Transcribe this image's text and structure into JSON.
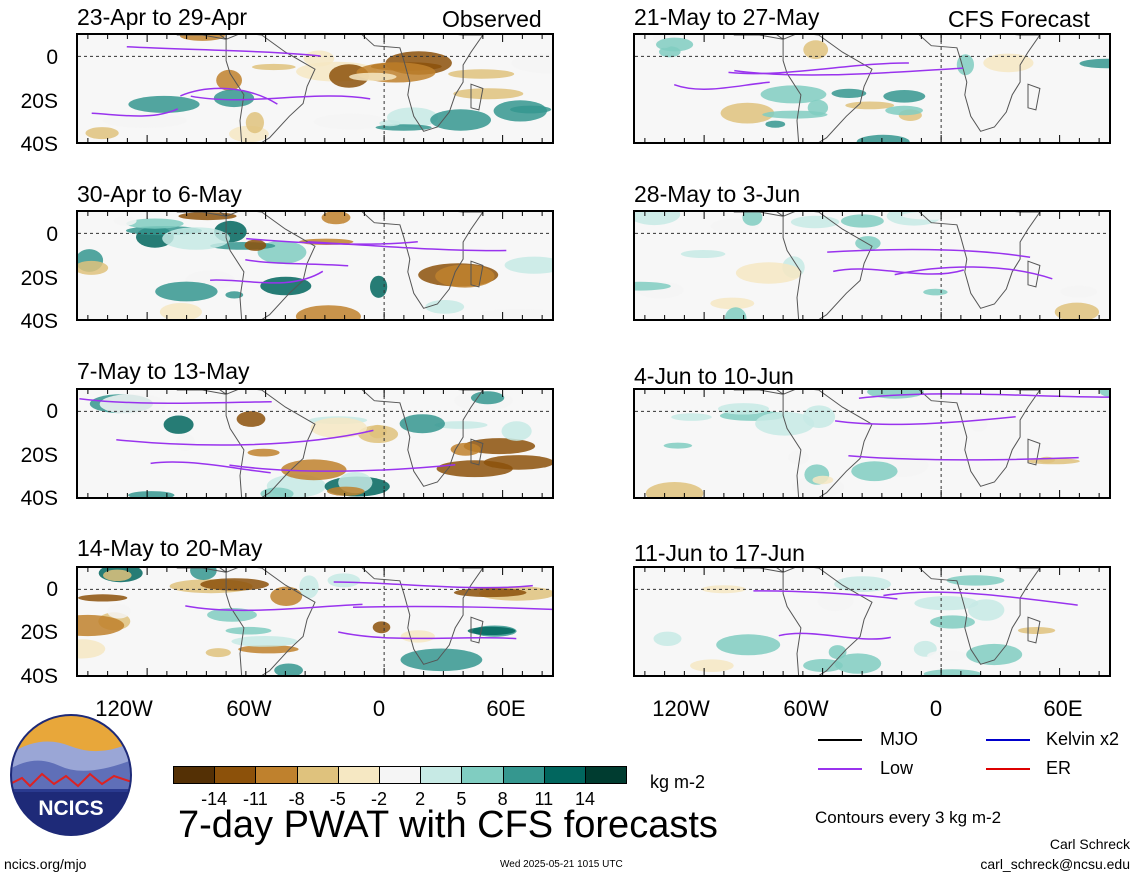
{
  "panels": [
    {
      "title": "23-Apr to 29-Apr",
      "label": "Observed"
    },
    {
      "title": "21-May to 27-May",
      "label": "CFS Forecast"
    },
    {
      "title": "30-Apr to 6-May"
    },
    {
      "title": "28-May to 3-Jun"
    },
    {
      "title": "7-May to 13-May"
    },
    {
      "title": "4-Jun to 10-Jun"
    },
    {
      "title": "14-May to 20-May"
    },
    {
      "title": "11-Jun to 17-Jun"
    }
  ],
  "y_ticks": [
    "0",
    "20S",
    "40S"
  ],
  "x_ticks": [
    "120W",
    "60W",
    "0",
    "60E"
  ],
  "colorbar": {
    "colors": [
      "#543005",
      "#8c510a",
      "#bf812d",
      "#dfc27d",
      "#f6e8c3",
      "#f5f5f5",
      "#c7eae5",
      "#80cdc1",
      "#35978f",
      "#01665e",
      "#003c30"
    ],
    "labels": [
      "-14",
      "-11",
      "-8",
      "-5",
      "-2",
      "2",
      "5",
      "8",
      "11",
      "14"
    ],
    "unit": "kg m-2"
  },
  "legend": {
    "items": [
      {
        "label": "MJO",
        "color": "#000000"
      },
      {
        "label": "Kelvin x2",
        "color": "#0000cc"
      },
      {
        "label": "Low",
        "color": "#9933ee"
      },
      {
        "label": "ER",
        "color": "#dd0000"
      }
    ],
    "contour_note": "Contours every 3 kg m-2"
  },
  "main_title": "7-day PWAT with CFS forecasts",
  "logo_text": "NCICS",
  "footer": {
    "site": "ncics.org/mjo",
    "timestamp": "Wed 2025-05-21 1015 UTC",
    "author": "Carl Schreck",
    "email": "carl_schreck@ncsu.edu"
  }
}
